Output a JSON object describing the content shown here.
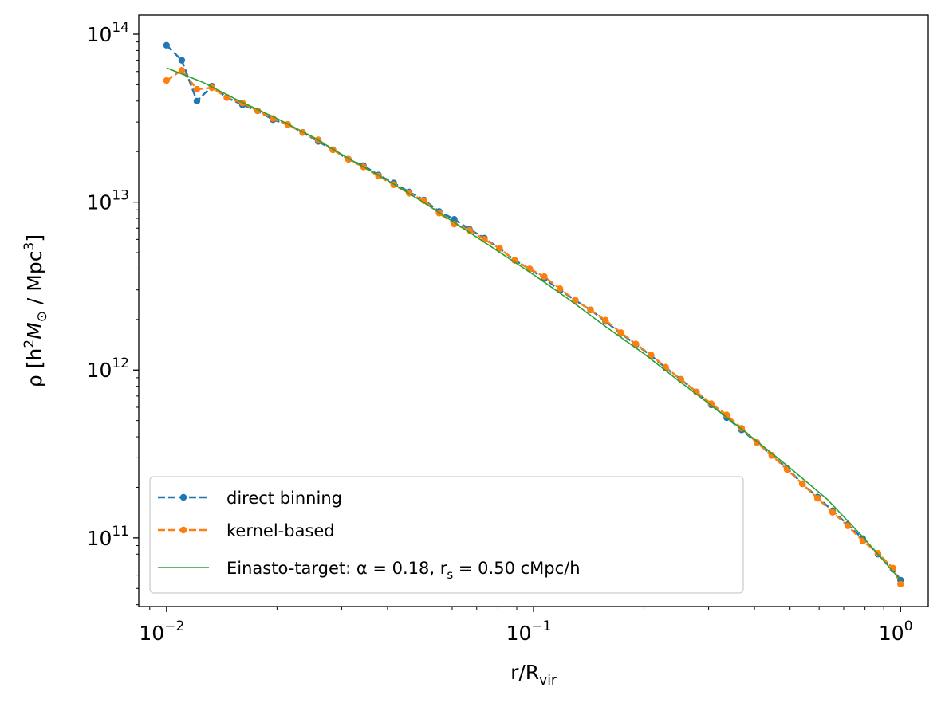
{
  "chart_data": {
    "type": "line",
    "xscale": "log",
    "yscale": "log",
    "xlim": [
      0.0084,
      1.19
    ],
    "ylim": [
      39000000000.0,
      130000000000000.0
    ],
    "xlabel": {
      "main": "r/R",
      "sub": "vir"
    },
    "ylabel": {
      "prefix": "ρ [h",
      "sup1": "2",
      "mid": "M",
      "sub": "⊙",
      "mid2": " / Mpc",
      "sup2": "3",
      "suffix": "]"
    },
    "x_ticks": [
      {
        "value": 0.01,
        "base": "10",
        "exp": "−2"
      },
      {
        "value": 0.1,
        "base": "10",
        "exp": "−1"
      },
      {
        "value": 1,
        "base": "10",
        "exp": "0"
      }
    ],
    "y_ticks": [
      {
        "value": 100000000000.0,
        "base": "10",
        "exp": "11"
      },
      {
        "value": 1000000000000.0,
        "base": "10",
        "exp": "12"
      },
      {
        "value": 10000000000000.0,
        "base": "10",
        "exp": "13"
      },
      {
        "value": 100000000000000.0,
        "base": "10",
        "exp": "14"
      }
    ],
    "legend_position": "lower-left",
    "grid": false,
    "series": [
      {
        "name": "direct binning",
        "color": "#1f77b4",
        "style": "dashed-markers",
        "x": [
          0.01,
          0.011,
          0.0121,
          0.0133,
          0.0146,
          0.0161,
          0.0177,
          0.0195,
          0.0214,
          0.0235,
          0.0259,
          0.0284,
          0.0313,
          0.0344,
          0.0378,
          0.0416,
          0.0458,
          0.0503,
          0.0553,
          0.0608,
          0.0669,
          0.0735,
          0.0808,
          0.0889,
          0.0977,
          0.107,
          0.118,
          0.13,
          0.143,
          0.157,
          0.173,
          0.19,
          0.209,
          0.229,
          0.252,
          0.278,
          0.305,
          0.336,
          0.369,
          0.406,
          0.446,
          0.491,
          0.54,
          0.594,
          0.653,
          0.718,
          0.789,
          0.868,
          0.954,
          1.0
        ],
        "y": [
          86000000000000.0,
          70000000000000.0,
          40000000000000.0,
          49000000000000.0,
          42000000000000.0,
          38000000000000.0,
          35000000000000.0,
          31000000000000.0,
          29000000000000.0,
          26000000000000.0,
          23000000000000.0,
          20500000000000.0,
          18000000000000.0,
          16500000000000.0,
          14500000000000.0,
          13000000000000.0,
          11500000000000.0,
          10300000000000.0,
          8800000000000.0,
          7900000000000.0,
          6900000000000.0,
          6100000000000.0,
          5300000000000.0,
          4500000000000.0,
          4000000000000.0,
          3500000000000.0,
          3000000000000.0,
          2600000000000.0,
          2280000000000.0,
          1950000000000.0,
          1650000000000.0,
          1420000000000.0,
          1220000000000.0,
          1030000000000.0,
          880000000000.0,
          740000000000.0,
          620000000000.0,
          520000000000.0,
          440000000000.0,
          370000000000.0,
          310000000000.0,
          260000000000.0,
          210000000000.0,
          175000000000.0,
          145000000000.0,
          120000000000.0,
          99000000000.0,
          80000000000.0,
          65000000000.0,
          56000000000.0
        ]
      },
      {
        "name": "kernel-based",
        "color": "#ff7f0e",
        "style": "dashed-markers",
        "x": [
          0.01,
          0.011,
          0.0121,
          0.0133,
          0.0146,
          0.0161,
          0.0177,
          0.0195,
          0.0214,
          0.0235,
          0.0259,
          0.0284,
          0.0313,
          0.0344,
          0.0378,
          0.0416,
          0.0458,
          0.0503,
          0.0553,
          0.0608,
          0.0669,
          0.0735,
          0.0808,
          0.0889,
          0.0977,
          0.107,
          0.118,
          0.13,
          0.143,
          0.157,
          0.173,
          0.19,
          0.209,
          0.229,
          0.252,
          0.278,
          0.305,
          0.336,
          0.369,
          0.406,
          0.446,
          0.491,
          0.54,
          0.594,
          0.653,
          0.718,
          0.789,
          0.868,
          0.954,
          1.0
        ],
        "y": [
          53000000000000.0,
          61000000000000.0,
          47000000000000.0,
          48000000000000.0,
          42000000000000.0,
          39000000000000.0,
          35000000000000.0,
          31500000000000.0,
          29000000000000.0,
          26000000000000.0,
          23500000000000.0,
          20500000000000.0,
          18000000000000.0,
          16200000000000.0,
          14300000000000.0,
          12700000000000.0,
          11300000000000.0,
          10200000000000.0,
          8600000000000.0,
          7400000000000.0,
          6800000000000.0,
          6000000000000.0,
          5300000000000.0,
          4500000000000.0,
          4000000000000.0,
          3600000000000.0,
          3050000000000.0,
          2600000000000.0,
          2280000000000.0,
          1980000000000.0,
          1670000000000.0,
          1430000000000.0,
          1230000000000.0,
          1040000000000.0,
          880000000000.0,
          740000000000.0,
          630000000000.0,
          540000000000.0,
          450000000000.0,
          370000000000.0,
          310000000000.0,
          255000000000.0,
          210000000000.0,
          172000000000.0,
          142000000000.0,
          118000000000.0,
          96000000000.0,
          81000000000.0,
          66000000000.0,
          53000000000.0
        ]
      },
      {
        "name": "Einasto-target: α = 0.18, r",
        "name_sub": "s",
        "name_tail": " = 0.50 cMpc/h",
        "color": "#2ca02c",
        "style": "solid",
        "x": [
          0.01,
          0.0125,
          0.0158,
          0.02,
          0.025,
          0.0316,
          0.04,
          0.05,
          0.063,
          0.079,
          0.1,
          0.126,
          0.158,
          0.2,
          0.251,
          0.316,
          0.398,
          0.501,
          0.631,
          0.794,
          1.0
        ],
        "y": [
          63000000000000.0,
          52000000000000.0,
          40000000000000.0,
          31500000000000.0,
          24500000000000.0,
          18000000000000.0,
          13500000000000.0,
          10000000000000.0,
          7200000000000.0,
          5200000000000.0,
          3700000000000.0,
          2600000000000.0,
          1800000000000.0,
          1250000000000.0,
          850000000000.0,
          580000000000.0,
          390000000000.0,
          260000000000.0,
          170000000000.0,
          100000000000.0,
          56000000000.0
        ]
      }
    ]
  }
}
